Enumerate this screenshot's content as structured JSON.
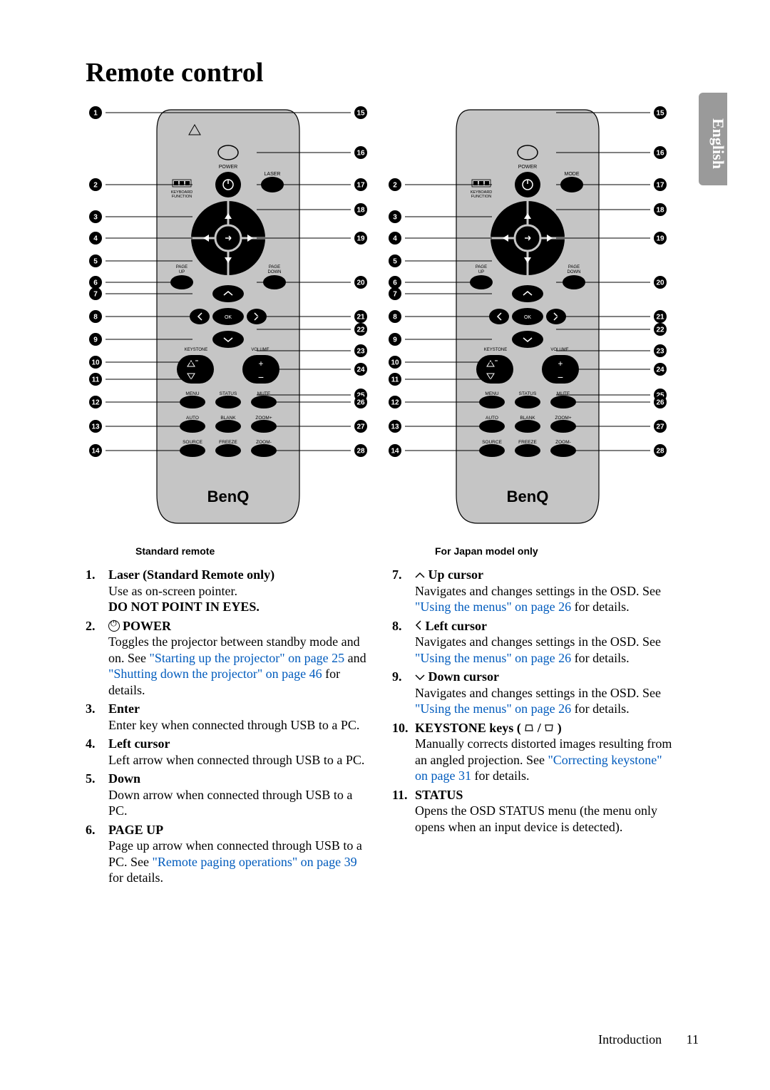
{
  "title": "Remote control",
  "langTab": "English",
  "diagrams": {
    "left": {
      "caption": "Standard remote",
      "topRightLabel": "LASER",
      "leftCallouts": [
        1,
        2,
        3,
        4,
        5,
        6,
        7,
        8,
        9,
        10,
        11,
        12,
        13,
        14
      ],
      "rightCallouts": [
        15,
        16,
        17,
        18,
        19,
        20,
        21,
        22,
        23,
        24,
        25,
        26,
        27,
        28
      ]
    },
    "right": {
      "caption": "For Japan model only",
      "topRightLabel": "MODE",
      "leftCallouts": [
        2,
        3,
        4,
        5,
        6,
        7,
        8,
        9,
        10,
        11,
        12,
        13,
        14
      ],
      "rightCallouts": [
        15,
        16,
        17,
        18,
        19,
        20,
        21,
        22,
        23,
        24,
        25,
        26,
        27,
        28
      ]
    },
    "remote": {
      "bodyColor": "#c5c5c5",
      "buttonRows": [
        {
          "labels": [
            "MENU",
            "STATUS",
            "MUTE"
          ]
        },
        {
          "labels": [
            "AUTO",
            "BLANK",
            "ZOOM+"
          ]
        },
        {
          "labels": [
            "SOURCE",
            "FREEZE",
            "ZOOM-"
          ]
        }
      ],
      "textLabels": {
        "power": "POWER",
        "keyboard": "KEYBOARD\nFUNCTION",
        "pageUp": "PAGE\nUP",
        "pageDown": "PAGE\nDOWN",
        "keystone": "KEYSTONE",
        "volume": "VOLUME",
        "ok": "OK"
      },
      "brand": "BenQ"
    }
  },
  "colLeft": [
    {
      "n": "1.",
      "title": "Laser (Standard Remote only)",
      "body": "Use as on-screen pointer.",
      "extra": "DO NOT POINT IN EYES."
    },
    {
      "n": "2.",
      "iconPower": true,
      "title": "POWER",
      "body_a": "Toggles the projector between standby mode and on. See ",
      "link_a": "\"Starting up the projector\" on page 25",
      "body_b": " and ",
      "link_b": "\"Shutting down the projector\" on page 46",
      "body_c": " for details."
    },
    {
      "n": "3.",
      "title": "Enter",
      "body": "Enter key when connected through USB to a PC."
    },
    {
      "n": "4.",
      "title": "Left cursor",
      "body": "Left arrow when connected through USB to a PC."
    },
    {
      "n": "5.",
      "title": "Down",
      "body": "Down arrow when connected through USB to a PC."
    },
    {
      "n": "6.",
      "title": "PAGE UP",
      "body_a": "Page up arrow when connected through USB to a PC. See ",
      "link_a": "\"Remote paging operations\" on page 39",
      "body_b": " for details."
    }
  ],
  "colRight": [
    {
      "n": "7.",
      "glyph": "up",
      "title": "Up cursor",
      "body_a": "Navigates and changes settings in the OSD. See ",
      "link_a": "\"Using the menus\" on page 26",
      "body_b": " for details."
    },
    {
      "n": "8.",
      "glyph": "left",
      "title": "Left cursor",
      "body_a": "Navigates and changes settings in the OSD. See ",
      "link_a": "\"Using the menus\" on page 26",
      "body_b": " for details."
    },
    {
      "n": "9.",
      "glyph": "down",
      "title": "Down cursor",
      "body_a": "Navigates and changes settings in the OSD. See ",
      "link_a": "\"Using the menus\" on page 26",
      "body_b": " for details."
    },
    {
      "n": "10.",
      "keystone": true,
      "title": "KEYSTONE keys",
      "body_a": "Manually corrects distorted images resulting from an angled projection. See ",
      "link_a": "\"Correcting keystone\" on page 31",
      "body_b": " for details."
    },
    {
      "n": "11.",
      "title": "STATUS",
      "body": "Opens the OSD STATUS menu (the menu only opens when an input device is detected)."
    }
  ],
  "footer": {
    "section": "Introduction",
    "page": "11"
  }
}
